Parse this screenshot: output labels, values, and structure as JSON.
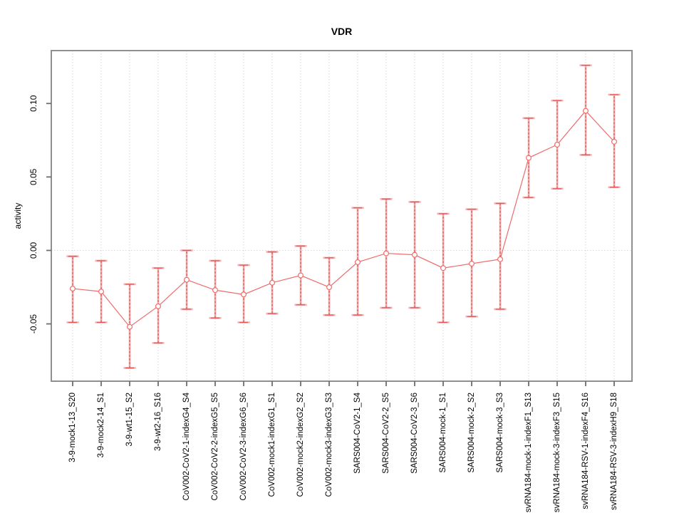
{
  "figure": {
    "title": "VDR",
    "y_axis_label": "activity"
  },
  "chart_data": {
    "type": "scatter",
    "title": "VDR",
    "xlabel": "",
    "ylabel": "activity",
    "legend": "none",
    "grid": "dotted vertical gridline at each category; dotted horizontal line at y=0",
    "marker": "open-circle",
    "line_style": "solid connecting line with symmetric error bars",
    "ylim": [
      -0.089,
      0.136
    ],
    "yticks": [
      -0.05,
      0.0,
      0.05,
      0.1
    ],
    "ytick_labels": [
      "-0.05",
      "0.00",
      "0.05",
      "0.10"
    ],
    "categories": [
      "3-9-mock1-13_S20",
      "3-9-mock2-14_S1",
      "3-9-wt1-15_S2",
      "3-9-wt2-16_S16",
      "CoV002-CoV2-1-indexG4_S4",
      "CoV002-CoV2-2-indexG5_S5",
      "CoV002-CoV2-3-indexG6_S6",
      "CoV002-mock1-indexG1_S1",
      "CoV002-mock2-indexG2_S2",
      "CoV002-mock3-indexG3_S3",
      "SARS004-CoV2-1_S4",
      "SARS004-CoV2-2_S5",
      "SARS004-CoV2-3_S6",
      "SARS004-mock-1_S1",
      "SARS004-mock-2_S2",
      "SARS004-mock-3_S3",
      "svRNA184-mock-1-indexF1_S13",
      "svRNA184-mock-3-indexF3_S15",
      "svRNA184-RSV-1-indexF4_S16",
      "svRNA184-RSV-3-indexH9_S18"
    ],
    "series": [
      {
        "name": "VDR activity",
        "values": [
          -0.026,
          -0.028,
          -0.052,
          -0.038,
          -0.02,
          -0.027,
          -0.03,
          -0.022,
          -0.017,
          -0.025,
          -0.008,
          -0.002,
          -0.003,
          -0.012,
          -0.009,
          -0.006,
          0.063,
          0.072,
          0.095,
          0.074
        ],
        "err_low": [
          -0.049,
          -0.049,
          -0.08,
          -0.063,
          -0.04,
          -0.046,
          -0.049,
          -0.043,
          -0.037,
          -0.044,
          -0.044,
          -0.039,
          -0.039,
          -0.049,
          -0.045,
          -0.04,
          0.036,
          0.042,
          0.065,
          0.043
        ],
        "err_high": [
          -0.004,
          -0.007,
          -0.023,
          -0.012,
          0.0,
          -0.007,
          -0.01,
          -0.001,
          0.003,
          -0.005,
          0.029,
          0.035,
          0.033,
          0.025,
          0.028,
          0.032,
          0.09,
          0.102,
          0.126,
          0.106
        ]
      }
    ],
    "colors": {
      "series": "#ef6b6b",
      "errorbar_outer": "#f6abab",
      "errorbar_inner": "#e25555",
      "gridline": "#dadada",
      "box": "#8f8f8f",
      "tick": "#6f6f6f",
      "text": "#000000",
      "background": "#ffffff"
    }
  }
}
